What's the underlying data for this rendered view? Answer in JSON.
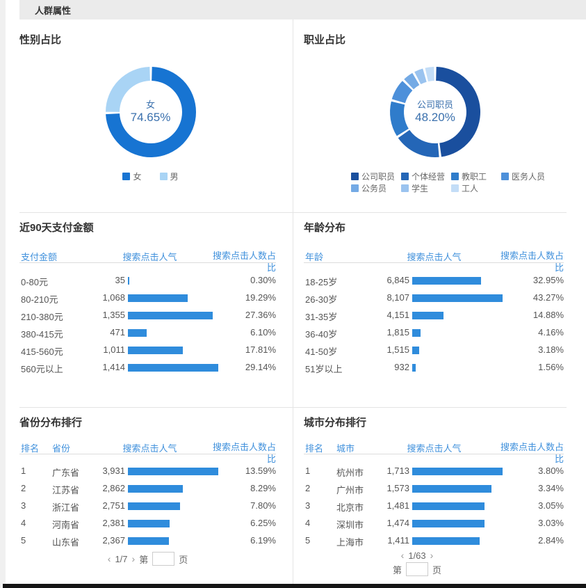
{
  "page": {
    "header_title": "人群属性"
  },
  "colors": {
    "bar-blue": "#2F8CDC",
    "header-blue": "#4191DC",
    "title-text": "#333333",
    "body-text": "#555555",
    "center-text": "#3A70AD",
    "legend-text": "#666666",
    "pager-text": "#666666",
    "divider": "#E4E4E4",
    "header-band-bg": "#EBEBEB",
    "left-strip": "#F0F0F0",
    "bottom-bar": "#151515"
  },
  "chart_data": [
    {
      "id": "gender",
      "type": "pie",
      "title": "性别占比",
      "center_label": "女",
      "center_value": "74.65%",
      "legend_position": "bottom",
      "segments": [
        {
          "label": "女",
          "value": 74.65,
          "color": "#1774D2"
        },
        {
          "label": "男",
          "value": 25.35,
          "color": "#A9D4F5"
        }
      ]
    },
    {
      "id": "occupation",
      "type": "pie",
      "title": "职业占比",
      "center_label": "公司职员",
      "center_value": "48.20%",
      "legend_position": "bottom",
      "note": "only 48.20% labeled on screen; other slice values estimated from arc lengths",
      "segments": [
        {
          "label": "公司职员",
          "value": 48.2,
          "color": "#1A4F9E"
        },
        {
          "label": "个体经营",
          "value": 17.5,
          "color": "#2466B7"
        },
        {
          "label": "教职工",
          "value": 13.5,
          "color": "#2F7CCB"
        },
        {
          "label": "医务人员",
          "value": 8.3,
          "color": "#4D90DA"
        },
        {
          "label": "公务员",
          "value": 4.5,
          "color": "#74AAE5"
        },
        {
          "label": "学生",
          "value": 4.0,
          "color": "#9AC3EF"
        },
        {
          "label": "工人",
          "value": 4.0,
          "color": "#C3DDF7"
        }
      ]
    },
    {
      "id": "payment",
      "type": "table-bar",
      "title": "近90天支付金额",
      "columns": [
        "支付金额",
        "搜索点击人气",
        "搜索点击人数占比"
      ],
      "rows": [
        {
          "label": "0-80元",
          "value": "35",
          "pct": 0.3,
          "pct_text": "0.30%"
        },
        {
          "label": "80-210元",
          "value": "1,068",
          "pct": 19.29,
          "pct_text": "19.29%"
        },
        {
          "label": "210-380元",
          "value": "1,355",
          "pct": 27.36,
          "pct_text": "27.36%"
        },
        {
          "label": "380-415元",
          "value": "471",
          "pct": 6.1,
          "pct_text": "6.10%"
        },
        {
          "label": "415-560元",
          "value": "1,011",
          "pct": 17.81,
          "pct_text": "17.81%"
        },
        {
          "label": "560元以上",
          "value": "1,414",
          "pct": 29.14,
          "pct_text": "29.14%"
        }
      ]
    },
    {
      "id": "age",
      "type": "table-bar",
      "title": "年龄分布",
      "columns": [
        "年龄",
        "搜索点击人气",
        "搜索点击人数占比"
      ],
      "rows": [
        {
          "label": "18-25岁",
          "value": "6,845",
          "pct": 32.95,
          "pct_text": "32.95%"
        },
        {
          "label": "26-30岁",
          "value": "8,107",
          "pct": 43.27,
          "pct_text": "43.27%"
        },
        {
          "label": "31-35岁",
          "value": "4,151",
          "pct": 14.88,
          "pct_text": "14.88%"
        },
        {
          "label": "36-40岁",
          "value": "1,815",
          "pct": 4.16,
          "pct_text": "4.16%"
        },
        {
          "label": "41-50岁",
          "value": "1,515",
          "pct": 3.18,
          "pct_text": "3.18%"
        },
        {
          "label": "51岁以上",
          "value": "932",
          "pct": 1.56,
          "pct_text": "1.56%"
        }
      ]
    },
    {
      "id": "province",
      "type": "table-bar",
      "title": "省份分布排行",
      "columns": [
        "排名",
        "省份",
        "搜索点击人气",
        "搜索点击人数占比"
      ],
      "rows": [
        {
          "rank": "1",
          "label": "广东省",
          "value": "3,931",
          "pct": 13.59,
          "pct_text": "13.59%"
        },
        {
          "rank": "2",
          "label": "江苏省",
          "value": "2,862",
          "pct": 8.29,
          "pct_text": "8.29%"
        },
        {
          "rank": "3",
          "label": "浙江省",
          "value": "2,751",
          "pct": 7.8,
          "pct_text": "7.80%"
        },
        {
          "rank": "4",
          "label": "河南省",
          "value": "2,381",
          "pct": 6.25,
          "pct_text": "6.25%"
        },
        {
          "rank": "5",
          "label": "山东省",
          "value": "2,367",
          "pct": 6.19,
          "pct_text": "6.19%"
        }
      ],
      "pagination": {
        "prev": "‹",
        "info": "1/7",
        "next": "›",
        "jump_before": "第",
        "jump_value": "",
        "jump_after": "页"
      }
    },
    {
      "id": "city",
      "type": "table-bar",
      "title": "城市分布排行",
      "columns": [
        "排名",
        "城市",
        "搜索点击人气",
        "搜索点击人数占比"
      ],
      "rows": [
        {
          "rank": "1",
          "label": "杭州市",
          "value": "1,713",
          "pct": 3.8,
          "pct_text": "3.80%"
        },
        {
          "rank": "2",
          "label": "广州市",
          "value": "1,573",
          "pct": 3.34,
          "pct_text": "3.34%"
        },
        {
          "rank": "3",
          "label": "北京市",
          "value": "1,481",
          "pct": 3.05,
          "pct_text": "3.05%"
        },
        {
          "rank": "4",
          "label": "深圳市",
          "value": "1,474",
          "pct": 3.03,
          "pct_text": "3.03%"
        },
        {
          "rank": "5",
          "label": "上海市",
          "value": "1,411",
          "pct": 2.84,
          "pct_text": "2.84%"
        }
      ],
      "pagination": {
        "prev": "‹",
        "info": "1/63",
        "next": "›",
        "jump_before": "第",
        "jump_value": "",
        "jump_after": "页"
      }
    }
  ]
}
